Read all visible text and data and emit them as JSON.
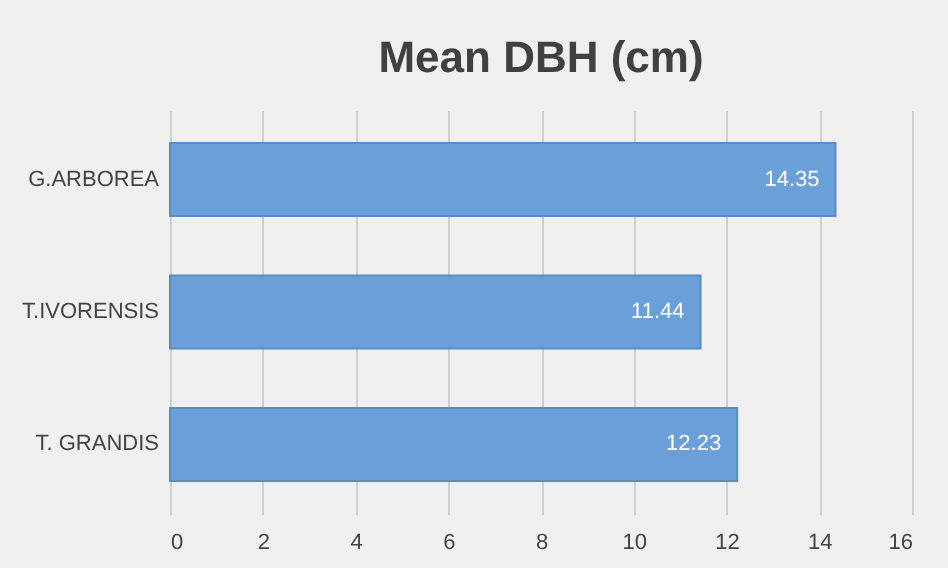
{
  "chart_data": {
    "type": "bar",
    "orientation": "horizontal",
    "title": "Mean DBH (cm)",
    "categories": [
      "G.ARBOREA",
      "T.IVORENSIS",
      "T. GRANDIS"
    ],
    "values": [
      14.35,
      11.44,
      12.23
    ],
    "color": "#6a9fd8",
    "xlim": [
      0,
      16
    ],
    "xticks": [
      0,
      2,
      4,
      6,
      8,
      10,
      12,
      14,
      16
    ],
    "grid": "x",
    "data_labels": true
  }
}
